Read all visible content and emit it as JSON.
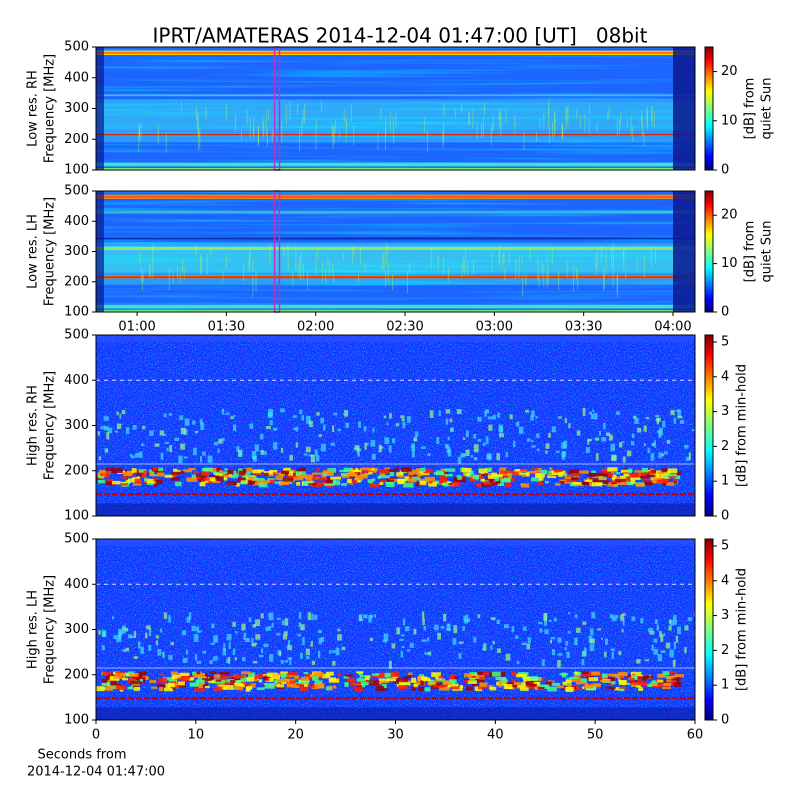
{
  "title": "IPRT/AMATERAS 2014-12-04 01:47:00 [UT]   08bit",
  "chart_data": [
    {
      "type": "spectrogram",
      "ylabel": [
        "Low res. RH",
        "Frequency [MHz]"
      ],
      "ylim": [
        100,
        500
      ],
      "yticks": [
        100,
        200,
        300,
        400,
        500
      ],
      "xlim": [
        46.2,
        247.4
      ],
      "vline_x": 107,
      "vline_color": "#c030c0",
      "colormap": "jet",
      "colorbar_label": [
        "[dB] from",
        "quiet Sun"
      ],
      "clim": [
        0,
        25
      ],
      "cticks": [
        0,
        10,
        20
      ]
    },
    {
      "type": "spectrogram",
      "ylabel": [
        "Low res. LH",
        "Frequency [MHz]"
      ],
      "ylim": [
        100,
        500
      ],
      "yticks": [
        100,
        200,
        300,
        400,
        500
      ],
      "xlim": [
        46.2,
        247.4
      ],
      "xticks": [
        {
          "value": 60,
          "label": "01:00"
        },
        {
          "value": 90,
          "label": "01:30"
        },
        {
          "value": 120,
          "label": "02:00"
        },
        {
          "value": 150,
          "label": "02:30"
        },
        {
          "value": 180,
          "label": "03:00"
        },
        {
          "value": 210,
          "label": "03:30"
        },
        {
          "value": 240,
          "label": "04:00"
        }
      ],
      "vline_x": 107,
      "vline_color": "#c030c0",
      "colormap": "jet",
      "colorbar_label": [
        "[dB] from",
        "quiet Sun"
      ],
      "clim": [
        0,
        25
      ],
      "cticks": [
        0,
        10,
        20
      ]
    },
    {
      "type": "spectrogram",
      "ylabel": [
        "High res. RH",
        "Frequency [MHz]"
      ],
      "ylim": [
        100,
        500
      ],
      "yticks": [
        100,
        200,
        300,
        400,
        500
      ],
      "xlim": [
        0,
        60
      ],
      "colormap": "jet",
      "colorbar_label": [
        "[dB] from min-hold"
      ],
      "clim": [
        0,
        5.2
      ],
      "cticks": [
        0,
        1,
        2,
        3,
        4,
        5
      ]
    },
    {
      "type": "spectrogram",
      "ylabel": [
        "High res. LH",
        "Frequency [MHz]"
      ],
      "ylim": [
        100,
        500
      ],
      "yticks": [
        100,
        200,
        300,
        400,
        500
      ],
      "xlim": [
        0,
        60
      ],
      "xticks": [
        0,
        10,
        20,
        30,
        40,
        50,
        60
      ],
      "xlabel": [
        "Seconds from",
        "2014-12-04 01:47:00"
      ],
      "colormap": "jet",
      "colorbar_label": [
        "[dB] from min-hold"
      ],
      "clim": [
        0,
        5.2
      ],
      "cticks": [
        0,
        1,
        2,
        3,
        4,
        5
      ]
    }
  ]
}
